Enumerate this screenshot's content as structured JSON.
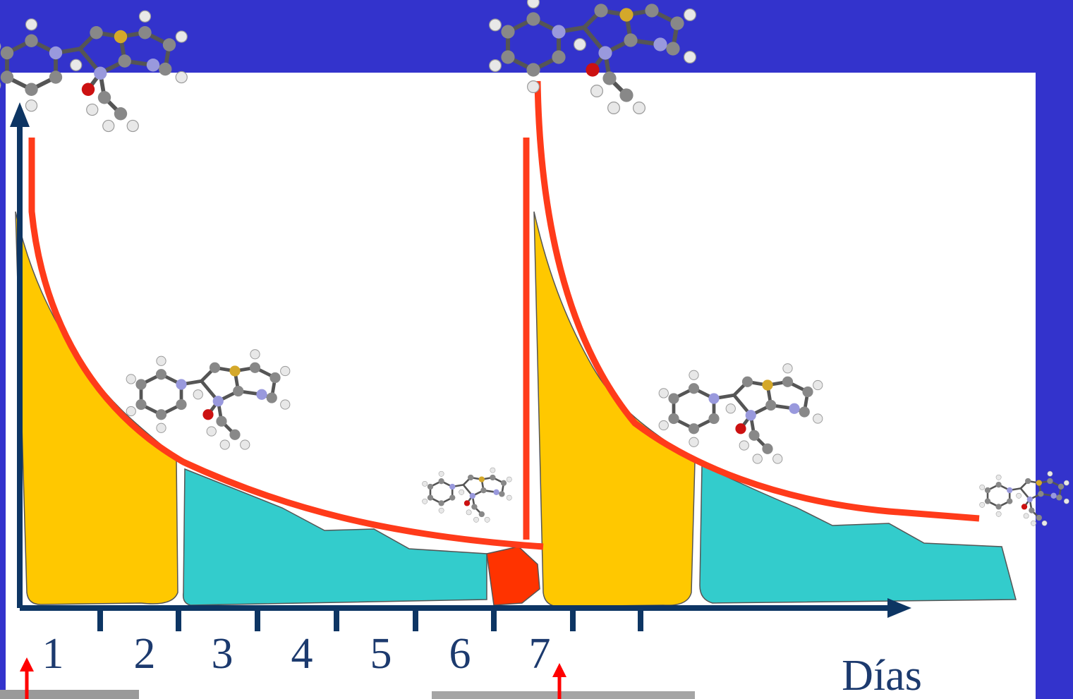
{
  "axis": {
    "labels": [
      "1",
      "2",
      "3",
      "4",
      "5",
      "6",
      "7"
    ],
    "title": "Días"
  }
}
